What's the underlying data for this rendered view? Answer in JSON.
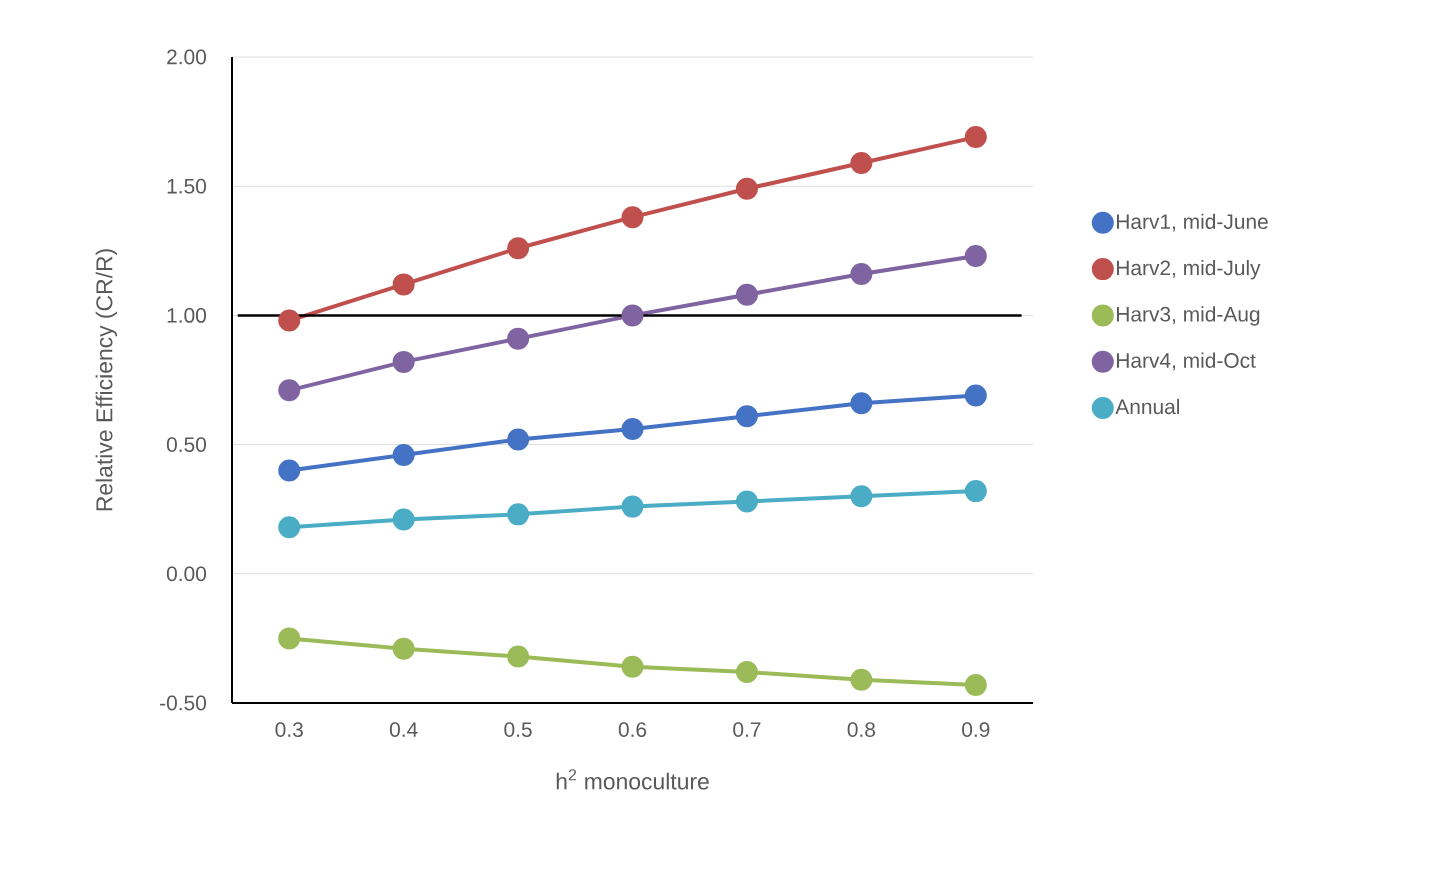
{
  "chart_data": {
    "type": "line",
    "xlabel": "h$^{2}$ monoculture",
    "ylabel": "Relative Efficiency (CR/R)",
    "categories": [
      "0.3",
      "0.4",
      "0.5",
      "0.6",
      "0.7",
      "0.8",
      "0.9"
    ],
    "series": [
      {
        "name": "Harv1, mid-June",
        "color": "#4472c4",
        "values": [
          0.4,
          0.46,
          0.52,
          0.56,
          0.61,
          0.66,
          0.69
        ]
      },
      {
        "name": "Harv2, mid-July",
        "color": "#c0504d",
        "values": [
          0.98,
          1.12,
          1.26,
          1.38,
          1.49,
          1.59,
          1.69
        ]
      },
      {
        "name": "Harv3, mid-Aug",
        "color": "#9bbb59",
        "values": [
          -0.25,
          -0.29,
          -0.32,
          -0.36,
          -0.38,
          -0.41,
          -0.43
        ]
      },
      {
        "name": "Harv4, mid-Oct",
        "color": "#8064a2",
        "values": [
          0.71,
          0.82,
          0.91,
          1.0,
          1.08,
          1.16,
          1.23
        ]
      },
      {
        "name": "Annual",
        "color": "#4bacc6",
        "values": [
          0.18,
          0.21,
          0.23,
          0.26,
          0.28,
          0.3,
          0.32
        ]
      }
    ],
    "ylim": [
      -0.5,
      2
    ],
    "yticks": [
      {
        "value": -0.5,
        "label": "-0.50"
      },
      {
        "value": 0,
        "label": "0.00"
      },
      {
        "value": 0.5,
        "label": "0.50"
      },
      {
        "value": 1,
        "label": "1.00"
      },
      {
        "value": 1.5,
        "label": "1.50"
      },
      {
        "value": 2,
        "label": "2.00"
      }
    ],
    "ref_lines": [
      {
        "axis": "y",
        "value": 1,
        "color": "#000000"
      }
    ],
    "grid": "y",
    "legend": "right",
    "marker": "circle",
    "line_style": "solid"
  }
}
